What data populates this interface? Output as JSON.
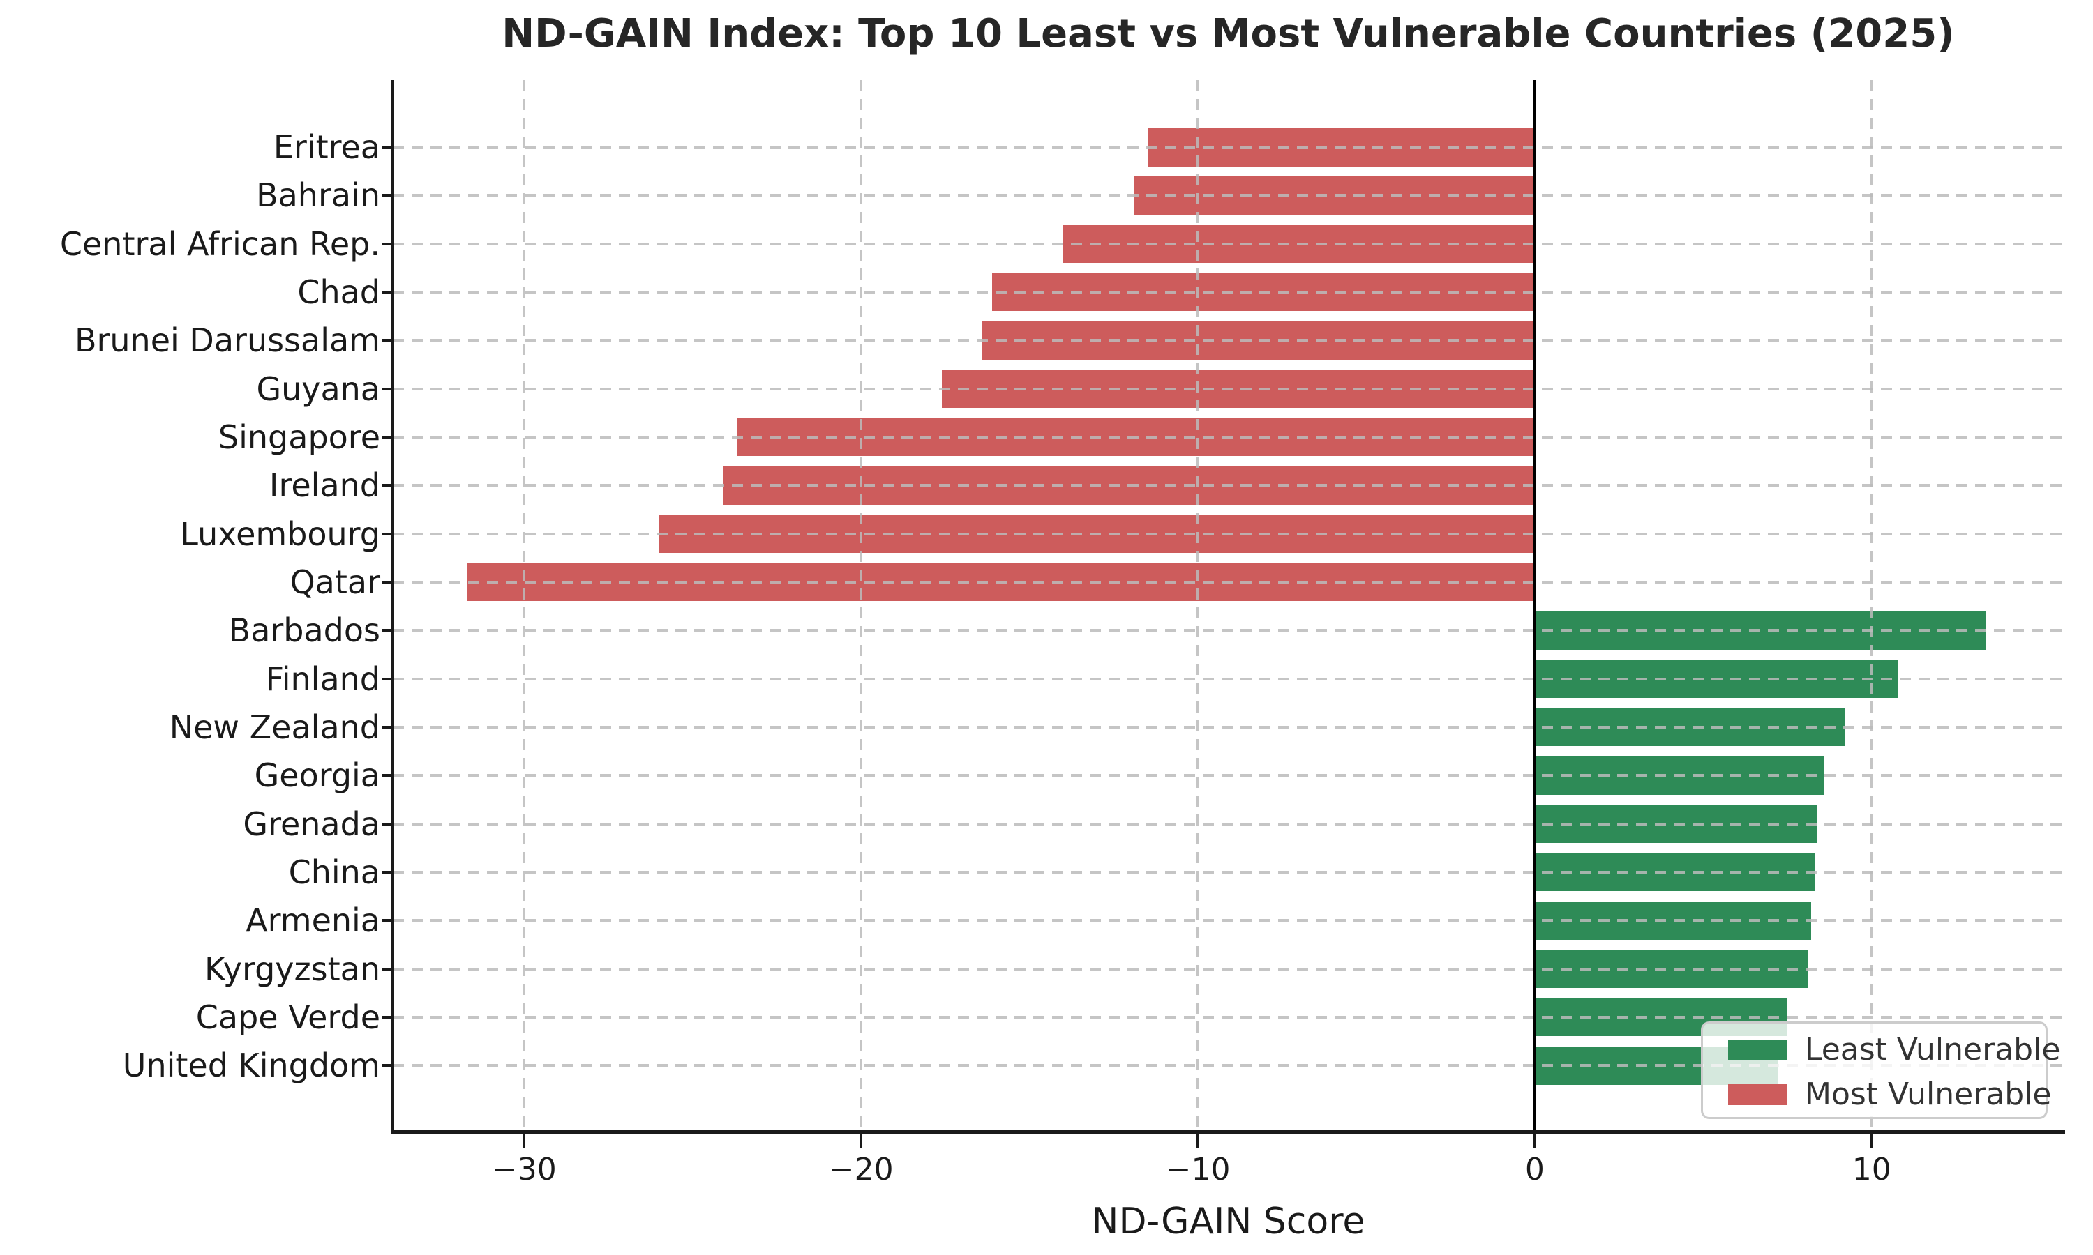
{
  "chart_data": {
    "type": "bar",
    "orientation": "horizontal",
    "title": "ND-GAIN Index: Top 10 Least vs Most Vulnerable Countries (2025)",
    "xlabel": "ND-GAIN Score",
    "ylabel": "",
    "xlim": [
      -33.9,
      15.7
    ],
    "grid": true,
    "grid_style": "dashed",
    "grid_color": "#bbbbbb",
    "zero_line_color": "#000000",
    "background_color": "#ffffff",
    "x_ticks": [
      {
        "value": -30,
        "label": "−30"
      },
      {
        "value": -20,
        "label": "−20"
      },
      {
        "value": -10,
        "label": "−10"
      },
      {
        "value": 0,
        "label": "0"
      },
      {
        "value": 10,
        "label": "10"
      }
    ],
    "series": [
      {
        "name": "Most Vulnerable",
        "color": "#CD5C5C",
        "categories": [
          "Eritrea",
          "Bahrain",
          "Central African Rep.",
          "Chad",
          "Brunei Darussalam",
          "Guyana",
          "Singapore",
          "Ireland",
          "Luxembourg",
          "Qatar"
        ],
        "values": [
          -11.5,
          -11.9,
          -14.0,
          -16.1,
          -16.4,
          -17.6,
          -23.7,
          -24.1,
          -26.0,
          -31.7
        ]
      },
      {
        "name": "Least Vulnerable",
        "color": "#2E8B57",
        "categories": [
          "Barbados",
          "Finland",
          "New Zealand",
          "Georgia",
          "Grenada",
          "China",
          "Armenia",
          "Kyrgyzstan",
          "Cape Verde",
          "United Kingdom"
        ],
        "values": [
          13.4,
          10.8,
          9.2,
          8.6,
          8.4,
          8.3,
          8.2,
          8.1,
          7.5,
          7.2
        ]
      }
    ],
    "row_order_note": "rows top-to-bottom = Most Vulnerable series then Least Vulnerable series",
    "legend": {
      "position": "lower right",
      "items": [
        {
          "label": "Least Vulnerable",
          "color": "#2E8B57"
        },
        {
          "label": "Most Vulnerable",
          "color": "#CD5C5C"
        }
      ]
    }
  }
}
